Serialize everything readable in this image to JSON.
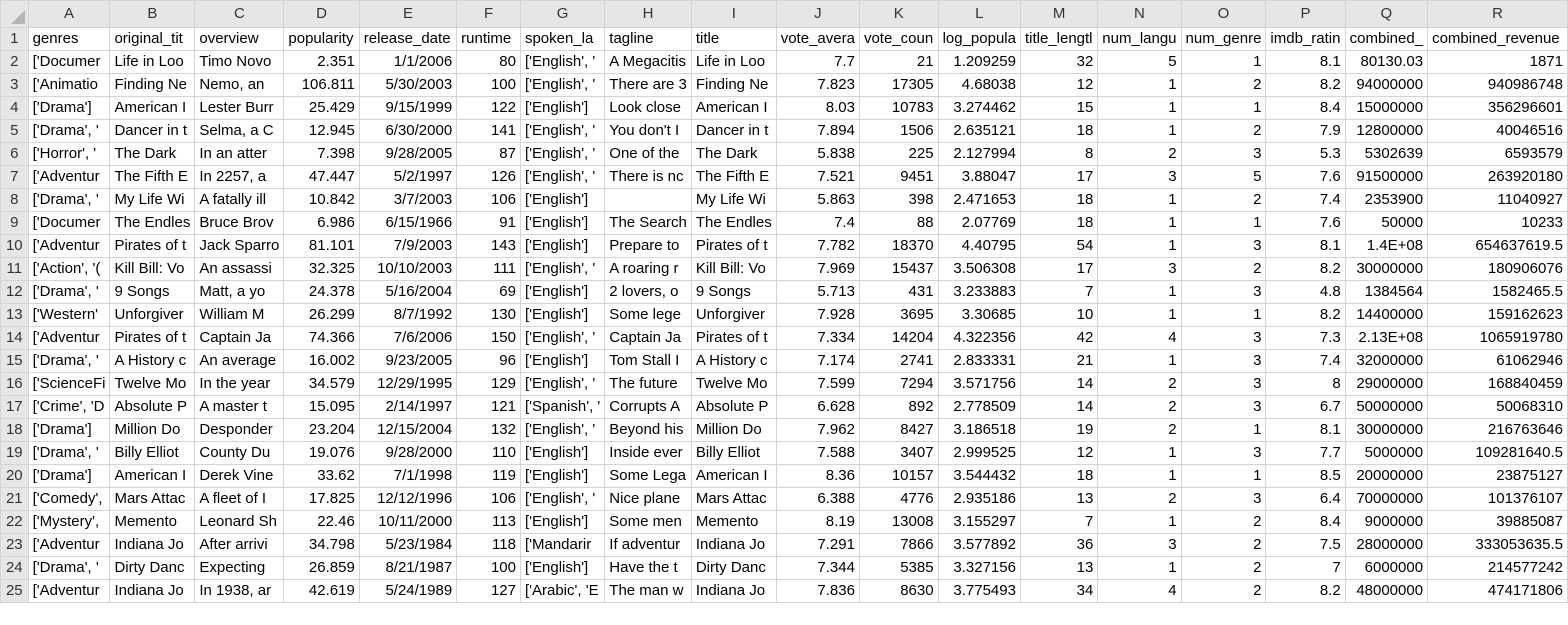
{
  "columns": [
    "A",
    "B",
    "C",
    "D",
    "E",
    "F",
    "G",
    "H",
    "I",
    "J",
    "K",
    "L",
    "M",
    "N",
    "O",
    "P",
    "Q",
    "R"
  ],
  "rows": [
    {
      "n": "1",
      "cells": [
        "genres",
        "original_tit",
        "overview",
        "popularity",
        "release_date",
        "runtime",
        "spoken_la",
        "tagline",
        "title",
        "vote_avera",
        "vote_coun",
        "log_popula",
        "title_lengtl",
        "num_langu",
        "num_genre",
        "imdb_ratin",
        "combined_",
        "combined_revenue"
      ]
    },
    {
      "n": "2",
      "cells": [
        "['Documer",
        "Life in Loo",
        "Timo Novo",
        "2.351",
        "1/1/2006",
        "80",
        "['English', '",
        "A Megacitis",
        "Life in Loo",
        "7.7",
        "21",
        "1.209259",
        "32",
        "5",
        "1",
        "8.1",
        "80130.03",
        "1871"
      ]
    },
    {
      "n": "3",
      "cells": [
        "['Animatio",
        "Finding Ne",
        "Nemo, an",
        "106.811",
        "5/30/2003",
        "100",
        "['English', '",
        "There are 3",
        "Finding Ne",
        "7.823",
        "17305",
        "4.68038",
        "12",
        "1",
        "2",
        "8.2",
        "94000000",
        "940986748"
      ]
    },
    {
      "n": "4",
      "cells": [
        "['Drama']",
        "American I",
        "Lester Burr",
        "25.429",
        "9/15/1999",
        "122",
        "['English']",
        "Look close",
        "American I",
        "8.03",
        "10783",
        "3.274462",
        "15",
        "1",
        "1",
        "8.4",
        "15000000",
        "356296601"
      ]
    },
    {
      "n": "5",
      "cells": [
        "['Drama', '",
        "Dancer in t",
        "Selma, a C",
        "12.945",
        "6/30/2000",
        "141",
        "['English', '",
        "You don't I",
        "Dancer in t",
        "7.894",
        "1506",
        "2.635121",
        "18",
        "1",
        "2",
        "7.9",
        "12800000",
        "40046516"
      ]
    },
    {
      "n": "6",
      "cells": [
        "['Horror', '",
        "The Dark",
        "In an atter",
        "7.398",
        "9/28/2005",
        "87",
        "['English', '",
        "One of the",
        "The Dark",
        "5.838",
        "225",
        "2.127994",
        "8",
        "2",
        "3",
        "5.3",
        "5302639",
        "6593579"
      ]
    },
    {
      "n": "7",
      "cells": [
        "['Adventur",
        "The Fifth E",
        "In 2257, a",
        "47.447",
        "5/2/1997",
        "126",
        "['English', '",
        "There is nc",
        "The Fifth E",
        "7.521",
        "9451",
        "3.88047",
        "17",
        "3",
        "5",
        "7.6",
        "91500000",
        "263920180"
      ]
    },
    {
      "n": "8",
      "cells": [
        "['Drama', '",
        "My Life Wi",
        "A fatally ill",
        "10.842",
        "3/7/2003",
        "106",
        "['English']",
        "",
        "My Life Wi",
        "5.863",
        "398",
        "2.471653",
        "18",
        "1",
        "2",
        "7.4",
        "2353900",
        "11040927"
      ]
    },
    {
      "n": "9",
      "cells": [
        "['Documer",
        "The Endles",
        "Bruce Brov",
        "6.986",
        "6/15/1966",
        "91",
        "['English']",
        "The Search",
        "The Endles",
        "7.4",
        "88",
        "2.07769",
        "18",
        "1",
        "1",
        "7.6",
        "50000",
        "10233"
      ]
    },
    {
      "n": "10",
      "cells": [
        "['Adventur",
        "Pirates of t",
        "Jack Sparro",
        "81.101",
        "7/9/2003",
        "143",
        "['English']",
        "Prepare to",
        "Pirates of t",
        "7.782",
        "18370",
        "4.40795",
        "54",
        "1",
        "3",
        "8.1",
        "1.4E+08",
        "654637619.5"
      ]
    },
    {
      "n": "11",
      "cells": [
        "['Action', '(",
        "Kill Bill: Vo",
        "An assassi",
        "32.325",
        "10/10/2003",
        "111",
        "['English', '",
        "A roaring r",
        "Kill Bill: Vo",
        "7.969",
        "15437",
        "3.506308",
        "17",
        "3",
        "2",
        "8.2",
        "30000000",
        "180906076"
      ]
    },
    {
      "n": "12",
      "cells": [
        "['Drama', '",
        "9 Songs",
        "Matt, a yo",
        "24.378",
        "5/16/2004",
        "69",
        "['English']",
        "2 lovers, o",
        "9 Songs",
        "5.713",
        "431",
        "3.233883",
        "7",
        "1",
        "3",
        "4.8",
        "1384564",
        "1582465.5"
      ]
    },
    {
      "n": "13",
      "cells": [
        "['Western'",
        "Unforgiver",
        "William M",
        "26.299",
        "8/7/1992",
        "130",
        "['English']",
        "Some lege",
        "Unforgiver",
        "7.928",
        "3695",
        "3.30685",
        "10",
        "1",
        "1",
        "8.2",
        "14400000",
        "159162623"
      ]
    },
    {
      "n": "14",
      "cells": [
        "['Adventur",
        "Pirates of t",
        "Captain Ja",
        "74.366",
        "7/6/2006",
        "150",
        "['English', '",
        "Captain Ja",
        "Pirates of t",
        "7.334",
        "14204",
        "4.322356",
        "42",
        "4",
        "3",
        "7.3",
        "2.13E+08",
        "1065919780"
      ]
    },
    {
      "n": "15",
      "cells": [
        "['Drama', '",
        "A History c",
        "An average",
        "16.002",
        "9/23/2005",
        "96",
        "['English']",
        "Tom Stall I",
        "A History c",
        "7.174",
        "2741",
        "2.833331",
        "21",
        "1",
        "3",
        "7.4",
        "32000000",
        "61062946"
      ]
    },
    {
      "n": "16",
      "cells": [
        "['ScienceFi",
        "Twelve Mo",
        "In the year",
        "34.579",
        "12/29/1995",
        "129",
        "['English', '",
        "The future",
        "Twelve Mo",
        "7.599",
        "7294",
        "3.571756",
        "14",
        "2",
        "3",
        "8",
        "29000000",
        "168840459"
      ]
    },
    {
      "n": "17",
      "cells": [
        "['Crime', 'D",
        "Absolute P",
        "A master t",
        "15.095",
        "2/14/1997",
        "121",
        "['Spanish', '",
        "Corrupts A",
        "Absolute P",
        "6.628",
        "892",
        "2.778509",
        "14",
        "2",
        "3",
        "6.7",
        "50000000",
        "50068310"
      ]
    },
    {
      "n": "18",
      "cells": [
        "['Drama']",
        "Million Do",
        "Desponder",
        "23.204",
        "12/15/2004",
        "132",
        "['English', '",
        "Beyond his",
        "Million Do",
        "7.962",
        "8427",
        "3.186518",
        "19",
        "2",
        "1",
        "8.1",
        "30000000",
        "216763646"
      ]
    },
    {
      "n": "19",
      "cells": [
        "['Drama', '",
        "Billy Elliot",
        "County Du",
        "19.076",
        "9/28/2000",
        "110",
        "['English']",
        "Inside ever",
        "Billy Elliot",
        "7.588",
        "3407",
        "2.999525",
        "12",
        "1",
        "3",
        "7.7",
        "5000000",
        "109281640.5"
      ]
    },
    {
      "n": "20",
      "cells": [
        "['Drama']",
        "American I",
        "Derek Vine",
        "33.62",
        "7/1/1998",
        "119",
        "['English']",
        "Some Lega",
        "American I",
        "8.36",
        "10157",
        "3.544432",
        "18",
        "1",
        "1",
        "8.5",
        "20000000",
        "23875127"
      ]
    },
    {
      "n": "21",
      "cells": [
        "['Comedy',",
        "Mars Attac",
        "A fleet of I",
        "17.825",
        "12/12/1996",
        "106",
        "['English', '",
        "Nice plane",
        "Mars Attac",
        "6.388",
        "4776",
        "2.935186",
        "13",
        "2",
        "3",
        "6.4",
        "70000000",
        "101376107"
      ]
    },
    {
      "n": "22",
      "cells": [
        "['Mystery',",
        "Memento",
        "Leonard Sh",
        "22.46",
        "10/11/2000",
        "113",
        "['English']",
        "Some men",
        "Memento",
        "8.19",
        "13008",
        "3.155297",
        "7",
        "1",
        "2",
        "8.4",
        "9000000",
        "39885087"
      ]
    },
    {
      "n": "23",
      "cells": [
        "['Adventur",
        "Indiana Jo",
        "After arrivi",
        "34.798",
        "5/23/1984",
        "118",
        "['Mandarir",
        "If adventur",
        "Indiana Jo",
        "7.291",
        "7866",
        "3.577892",
        "36",
        "3",
        "2",
        "7.5",
        "28000000",
        "333053635.5"
      ]
    },
    {
      "n": "24",
      "cells": [
        "['Drama', '",
        "Dirty Danc",
        "Expecting",
        "26.859",
        "8/21/1987",
        "100",
        "['English']",
        "Have the t",
        "Dirty Danc",
        "7.344",
        "5385",
        "3.327156",
        "13",
        "1",
        "2",
        "7",
        "6000000",
        "214577242"
      ]
    },
    {
      "n": "25",
      "cells": [
        "['Adventur",
        "Indiana Jo",
        "In 1938, ar",
        "42.619",
        "5/24/1989",
        "127",
        "['Arabic', 'E",
        "The man w",
        "Indiana Jo",
        "7.836",
        "8630",
        "3.775493",
        "34",
        "4",
        "2",
        "8.2",
        "48000000",
        "474171806"
      ]
    }
  ]
}
